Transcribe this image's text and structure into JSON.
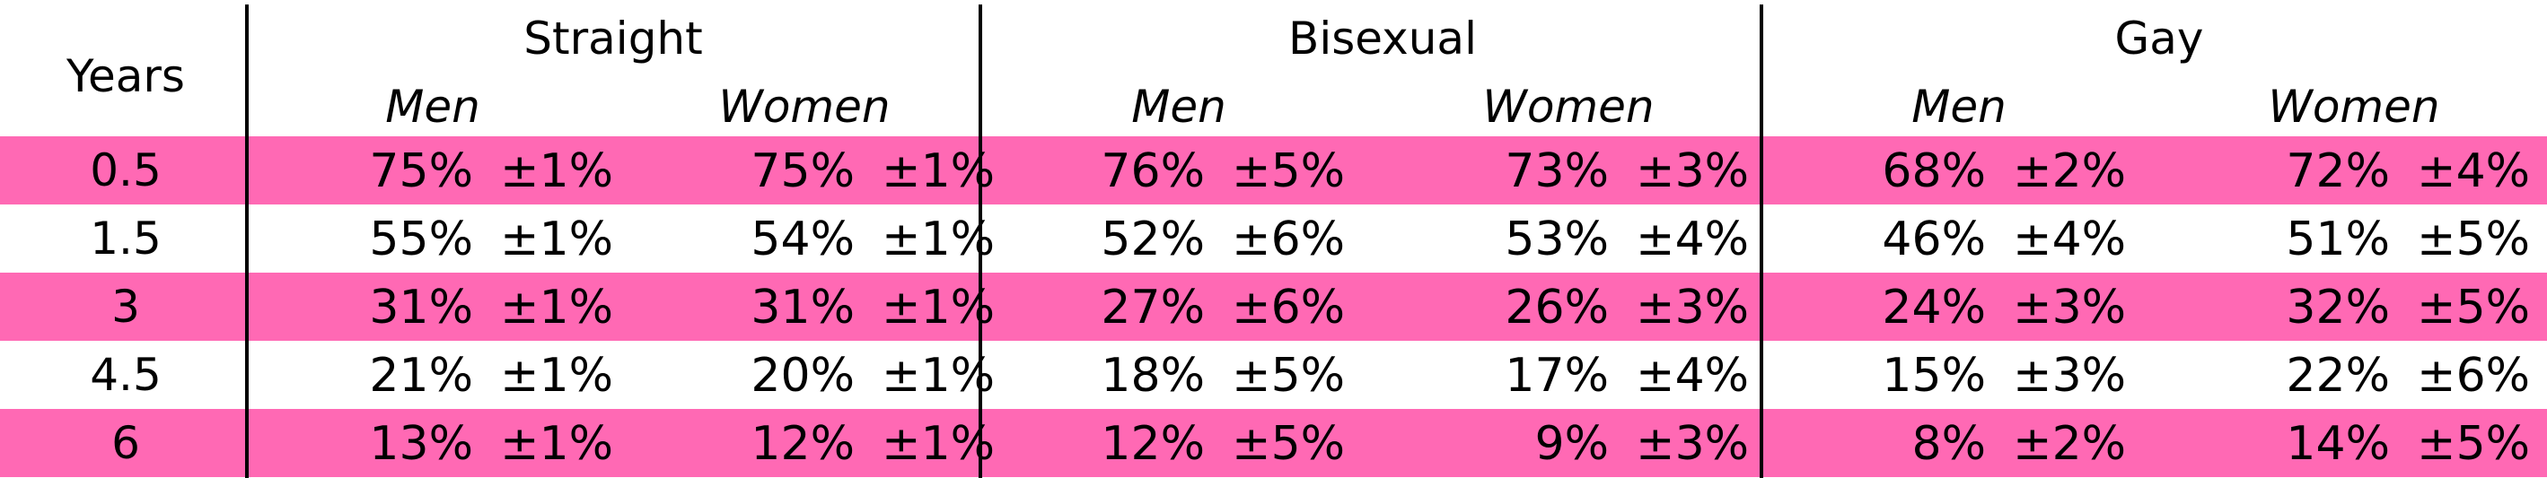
{
  "band_color": "#ff69b4",
  "chart_data": {
    "type": "table",
    "corner_header": "Years",
    "groups": [
      {
        "label": "Straight",
        "subcolumns": [
          "Men",
          "Women"
        ]
      },
      {
        "label": "Bisexual",
        "subcolumns": [
          "Men",
          "Women"
        ]
      },
      {
        "label": "Gay",
        "subcolumns": [
          "Men",
          "Women"
        ]
      }
    ],
    "rows": [
      {
        "years": "0.5",
        "cells": [
          [
            "75%",
            "±1%"
          ],
          [
            "75%",
            "±1%"
          ],
          [
            "76%",
            "±5%"
          ],
          [
            "73%",
            "±3%"
          ],
          [
            "68%",
            "±2%"
          ],
          [
            "72%",
            "±4%"
          ]
        ]
      },
      {
        "years": "1.5",
        "cells": [
          [
            "55%",
            "±1%"
          ],
          [
            "54%",
            "±1%"
          ],
          [
            "52%",
            "±6%"
          ],
          [
            "53%",
            "±4%"
          ],
          [
            "46%",
            "±4%"
          ],
          [
            "51%",
            "±5%"
          ]
        ]
      },
      {
        "years": "3",
        "cells": [
          [
            "31%",
            "±1%"
          ],
          [
            "31%",
            "±1%"
          ],
          [
            "27%",
            "±6%"
          ],
          [
            "26%",
            "±3%"
          ],
          [
            "24%",
            "±3%"
          ],
          [
            "32%",
            "±5%"
          ]
        ]
      },
      {
        "years": "4.5",
        "cells": [
          [
            "21%",
            "±1%"
          ],
          [
            "20%",
            "±1%"
          ],
          [
            "18%",
            "±5%"
          ],
          [
            "17%",
            "±4%"
          ],
          [
            "15%",
            "±3%"
          ],
          [
            "22%",
            "±6%"
          ]
        ]
      },
      {
        "years": "6",
        "cells": [
          [
            "13%",
            "±1%"
          ],
          [
            "12%",
            "±1%"
          ],
          [
            "12%",
            "±5%"
          ],
          [
            "9%",
            "±3%"
          ],
          [
            "8%",
            "±2%"
          ],
          [
            "14%",
            "±5%"
          ]
        ]
      }
    ]
  }
}
